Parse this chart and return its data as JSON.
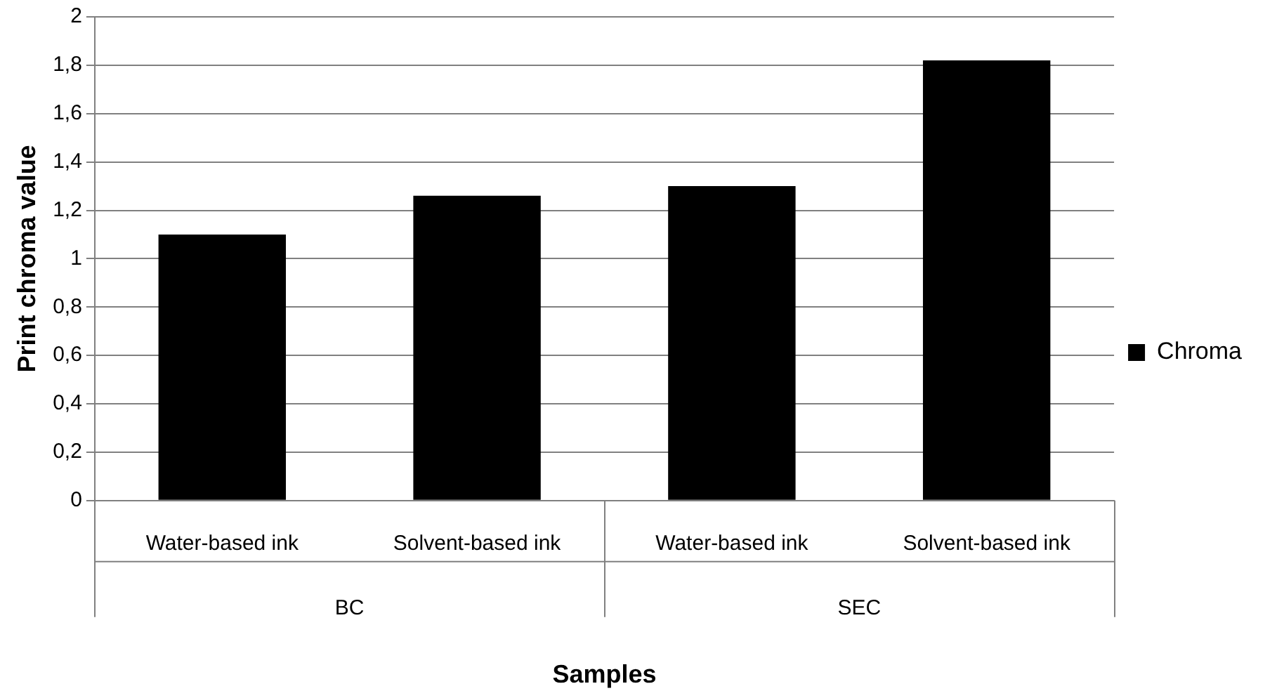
{
  "chart_data": {
    "type": "bar",
    "xlabel": "Samples",
    "ylabel": "Print chroma value",
    "categories": [
      "Water-based ink",
      "Solvent-based ink",
      "Water-based ink",
      "Solvent-based ink"
    ],
    "series": [
      {
        "name": "Chroma",
        "color": "#000000",
        "values": [
          1.1,
          1.26,
          1.3,
          1.82
        ]
      }
    ],
    "annotations": [
      "BC",
      "SEC"
    ],
    "ylim": [
      0,
      2
    ],
    "yticks": [
      0,
      {
        "value": 0.2,
        "label": "0,2"
      },
      {
        "value": 0.4,
        "label": "0,4"
      },
      {
        "value": 0.6,
        "label": "0,6"
      },
      {
        "value": 0.8,
        "label": "0,8"
      },
      1,
      {
        "value": 1.2,
        "label": "1,2"
      },
      {
        "value": 1.4,
        "label": "1,4"
      },
      {
        "value": 1.6,
        "label": "1,6"
      },
      {
        "value": 1.8,
        "label": "1,8"
      },
      2
    ],
    "grid": "y",
    "legend": "right"
  }
}
